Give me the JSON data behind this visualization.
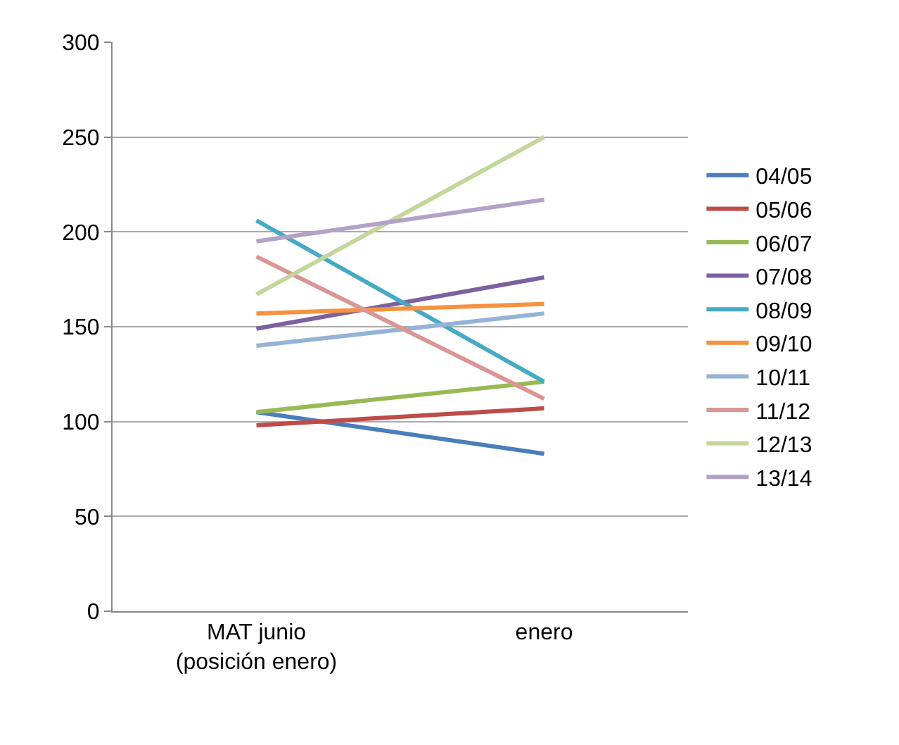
{
  "chart_data": {
    "type": "line",
    "categories": [
      "MAT junio\n(posición enero)",
      "enero"
    ],
    "ylim": [
      0,
      300
    ],
    "yticks": [
      0,
      50,
      100,
      150,
      200,
      250,
      300
    ],
    "grid": "y",
    "legend": "right",
    "marker": "none",
    "line_style": "solid",
    "series": [
      {
        "name": "04/05",
        "color": "#4a7ebb",
        "values": [
          105,
          83
        ]
      },
      {
        "name": "05/06",
        "color": "#be4b48",
        "values": [
          98,
          107
        ]
      },
      {
        "name": "06/07",
        "color": "#98b954",
        "values": [
          105,
          121
        ]
      },
      {
        "name": "07/08",
        "color": "#7d60a0",
        "values": [
          149,
          176
        ]
      },
      {
        "name": "08/09",
        "color": "#46aac5",
        "values": [
          206,
          121
        ]
      },
      {
        "name": "09/10",
        "color": "#f69240",
        "values": [
          157,
          162
        ]
      },
      {
        "name": "10/11",
        "color": "#95b3d7",
        "values": [
          140,
          157
        ]
      },
      {
        "name": "11/12",
        "color": "#d99694",
        "values": [
          187,
          112
        ]
      },
      {
        "name": "12/13",
        "color": "#c3d69b",
        "values": [
          167,
          250
        ]
      },
      {
        "name": "13/14",
        "color": "#b3a2c7",
        "values": [
          195,
          217
        ]
      }
    ]
  }
}
